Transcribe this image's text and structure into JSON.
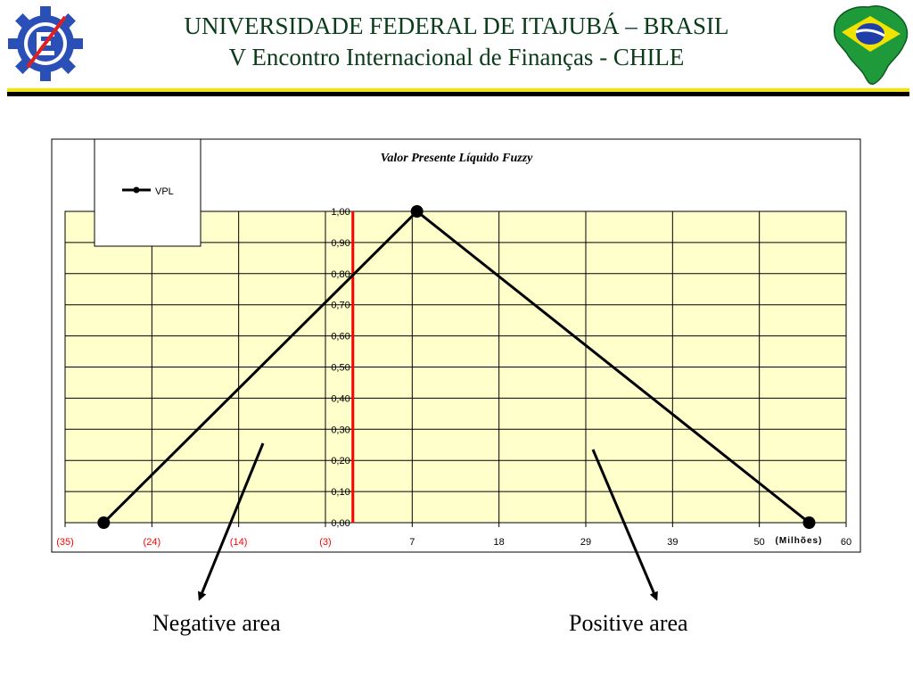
{
  "header": {
    "line1": "UNIVERSIDADE FEDERAL DE ITAJUBÁ – BRASIL",
    "line2": "V Encontro Internacional de Finanças - CHILE"
  },
  "colors": {
    "header_text": "#0a3c1a",
    "rule_top": "#f5e600",
    "rule_bottom": "#000000",
    "plot_bg": "#ffffcc",
    "series": "#000000",
    "zero_line": "#ff0000",
    "negative_tick_label": "#ff0000"
  },
  "icons": {
    "left_logo": "university-gear-logo-icon",
    "right_logo": "brazil-map-flag-icon"
  },
  "chart_data": {
    "type": "line",
    "title": "Valor Presente Líquido Fuzzy",
    "x_unit_label": "(Milhões)",
    "x_tick_labels": [
      "(35)",
      "(24)",
      "(14)",
      "(3)",
      "7",
      "18",
      "29",
      "39",
      "50",
      "60"
    ],
    "y_tick_labels": [
      "0,00",
      "0,10",
      "0,20",
      "0,30",
      "0,40",
      "0,50",
      "0,60",
      "0,70",
      "0,80",
      "0,90",
      "1,00"
    ],
    "xlim": [
      -35,
      60
    ],
    "ylim": [
      0,
      1
    ],
    "grid": true,
    "legend": {
      "placement": "top-left",
      "entries": [
        "VPL"
      ]
    },
    "series": [
      {
        "name": "VPL",
        "x": [
          -30.3,
          7.8,
          55.5
        ],
        "y": [
          0,
          1,
          0
        ]
      }
    ],
    "zero_line_x": 0
  },
  "annotations": {
    "negative": "Negative area",
    "positive": "Positive area"
  }
}
